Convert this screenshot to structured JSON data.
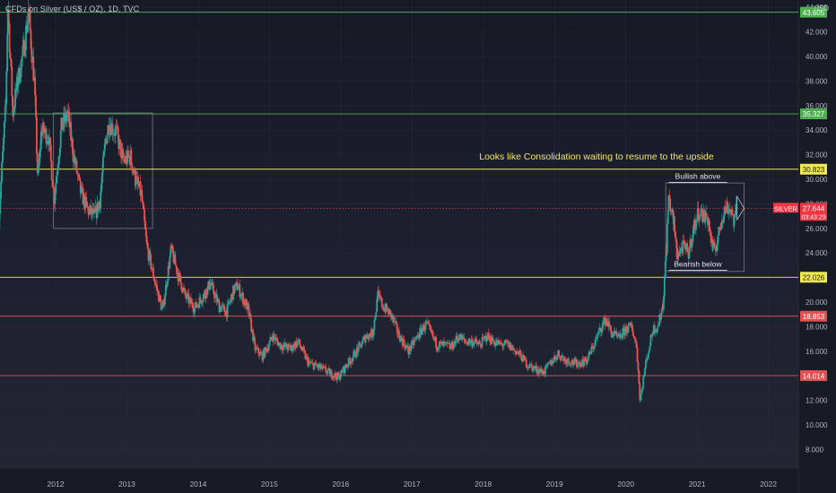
{
  "header": {
    "symbol_title": "CFDs on Silver (US$ / OZ), 1D, TVC",
    "currency": "USD"
  },
  "colors": {
    "background": "#131722",
    "grid": "#2a2e39",
    "axis_text": "#b2b5be",
    "up_candle": "#26a69a",
    "down_candle": "#ef5350",
    "level_green": "#4caf50",
    "level_yellow": "#f2e94e",
    "level_red": "#e05252",
    "price_label_bg": "#f23645",
    "annotation_text": "#f5e663"
  },
  "chart_data": {
    "type": "candlestick",
    "title": "CFDs on Silver (US$ / OZ), 1D, TVC",
    "ylabel": "USD",
    "x_ticks": [
      "2012",
      "2013",
      "2014",
      "2015",
      "2016",
      "2017",
      "2018",
      "2019",
      "2020",
      "2021",
      "2022"
    ],
    "y_ticks": [
      "8.000",
      "10.000",
      "12.000",
      "14.000",
      "16.000",
      "18.000",
      "20.000",
      "22.000",
      "24.000",
      "26.000",
      "28.000",
      "30.000",
      "32.000",
      "34.000",
      "36.000",
      "38.000",
      "40.000",
      "42.000",
      "44.000"
    ],
    "ylim": [
      6.5,
      44.6
    ],
    "xlim": [
      2011.22,
      2022.42
    ],
    "grid": true,
    "series_close": [
      [
        2011.2,
        26.5
      ],
      [
        2011.3,
        36.0
      ],
      [
        2011.33,
        44.0
      ],
      [
        2011.4,
        35.5
      ],
      [
        2011.47,
        38.0
      ],
      [
        2011.55,
        40.5
      ],
      [
        2011.62,
        43.6
      ],
      [
        2011.7,
        38.0
      ],
      [
        2011.75,
        30.0
      ],
      [
        2011.8,
        34.0
      ],
      [
        2011.9,
        33.5
      ],
      [
        2011.98,
        28.5
      ],
      [
        2012.08,
        34.2
      ],
      [
        2012.17,
        35.3
      ],
      [
        2012.25,
        32.0
      ],
      [
        2012.35,
        29.0
      ],
      [
        2012.45,
        27.5
      ],
      [
        2012.55,
        27.0
      ],
      [
        2012.62,
        28.3
      ],
      [
        2012.7,
        33.2
      ],
      [
        2012.75,
        34.6
      ],
      [
        2012.85,
        33.8
      ],
      [
        2012.95,
        31.5
      ],
      [
        2013.05,
        31.8
      ],
      [
        2013.12,
        30.0
      ],
      [
        2013.2,
        28.8
      ],
      [
        2013.28,
        24.5
      ],
      [
        2013.4,
        21.5
      ],
      [
        2013.5,
        19.3
      ],
      [
        2013.62,
        24.3
      ],
      [
        2013.72,
        22.2
      ],
      [
        2013.82,
        20.5
      ],
      [
        2013.95,
        19.5
      ],
      [
        2014.1,
        20.8
      ],
      [
        2014.17,
        21.5
      ],
      [
        2014.3,
        19.6
      ],
      [
        2014.4,
        19.2
      ],
      [
        2014.5,
        21.0
      ],
      [
        2014.55,
        21.3
      ],
      [
        2014.7,
        19.4
      ],
      [
        2014.8,
        16.2
      ],
      [
        2014.9,
        15.6
      ],
      [
        2015.05,
        17.2
      ],
      [
        2015.15,
        16.5
      ],
      [
        2015.3,
        16.2
      ],
      [
        2015.4,
        16.8
      ],
      [
        2015.55,
        15.0
      ],
      [
        2015.7,
        14.7
      ],
      [
        2015.85,
        14.2
      ],
      [
        2015.97,
        13.9
      ],
      [
        2016.1,
        15.0
      ],
      [
        2016.25,
        16.2
      ],
      [
        2016.35,
        17.2
      ],
      [
        2016.45,
        17.5
      ],
      [
        2016.52,
        20.5
      ],
      [
        2016.6,
        19.6
      ],
      [
        2016.7,
        19.0
      ],
      [
        2016.82,
        17.3
      ],
      [
        2016.95,
        16.0
      ],
      [
        2017.12,
        17.6
      ],
      [
        2017.2,
        18.2
      ],
      [
        2017.35,
        16.5
      ],
      [
        2017.45,
        16.5
      ],
      [
        2017.55,
        16.3
      ],
      [
        2017.65,
        17.2
      ],
      [
        2017.75,
        16.8
      ],
      [
        2017.85,
        16.8
      ],
      [
        2017.95,
        16.5
      ],
      [
        2018.05,
        17.2
      ],
      [
        2018.2,
        16.6
      ],
      [
        2018.35,
        16.5
      ],
      [
        2018.5,
        15.8
      ],
      [
        2018.62,
        14.9
      ],
      [
        2018.75,
        14.5
      ],
      [
        2018.85,
        14.3
      ],
      [
        2018.95,
        15.1
      ],
      [
        2019.05,
        15.8
      ],
      [
        2019.15,
        15.3
      ],
      [
        2019.3,
        15.0
      ],
      [
        2019.45,
        15.2
      ],
      [
        2019.55,
        16.5
      ],
      [
        2019.65,
        17.9
      ],
      [
        2019.72,
        18.6
      ],
      [
        2019.8,
        17.5
      ],
      [
        2019.9,
        17.0
      ],
      [
        2020.0,
        17.8
      ],
      [
        2020.08,
        18.0
      ],
      [
        2020.15,
        16.5
      ],
      [
        2020.2,
        12.0
      ],
      [
        2020.28,
        15.0
      ],
      [
        2020.38,
        17.8
      ],
      [
        2020.45,
        18.0
      ],
      [
        2020.52,
        19.8
      ],
      [
        2020.57,
        24.5
      ],
      [
        2020.6,
        28.5
      ],
      [
        2020.67,
        26.5
      ],
      [
        2020.72,
        23.8
      ],
      [
        2020.8,
        24.5
      ],
      [
        2020.88,
        24.0
      ],
      [
        2020.95,
        26.0
      ],
      [
        2021.03,
        27.5
      ],
      [
        2021.08,
        27.0
      ],
      [
        2021.15,
        26.8
      ],
      [
        2021.22,
        24.2
      ],
      [
        2021.28,
        24.8
      ],
      [
        2021.35,
        27.0
      ],
      [
        2021.42,
        27.8
      ],
      [
        2021.48,
        27.5
      ],
      [
        2021.52,
        26.5
      ],
      [
        2021.55,
        27.64
      ]
    ],
    "horizontal_levels": [
      {
        "price": "43.605",
        "color": "#4caf50"
      },
      {
        "price": "35.327",
        "color": "#4caf50"
      },
      {
        "price": "30.823",
        "color": "#f2e94e"
      },
      {
        "price": "22.026",
        "color": "#f2e94e"
      },
      {
        "price": "18.853",
        "color": "#e05252"
      },
      {
        "price": "14.014",
        "color": "#e05252"
      }
    ],
    "last_price": {
      "symbol": "SILVER",
      "price": "27.644",
      "countdown": "03:43:29"
    },
    "annotations": [
      "Looks like Consolidation waiting to resume to the upside",
      "Bullish above",
      "Bearish below"
    ],
    "consolidation_boxes": [
      {
        "x": [
          2011.97,
          2013.36
        ],
        "y": [
          26.0,
          35.4
        ]
      },
      {
        "x": [
          2020.56,
          2021.66
        ],
        "y": [
          22.5,
          29.7
        ]
      }
    ]
  }
}
